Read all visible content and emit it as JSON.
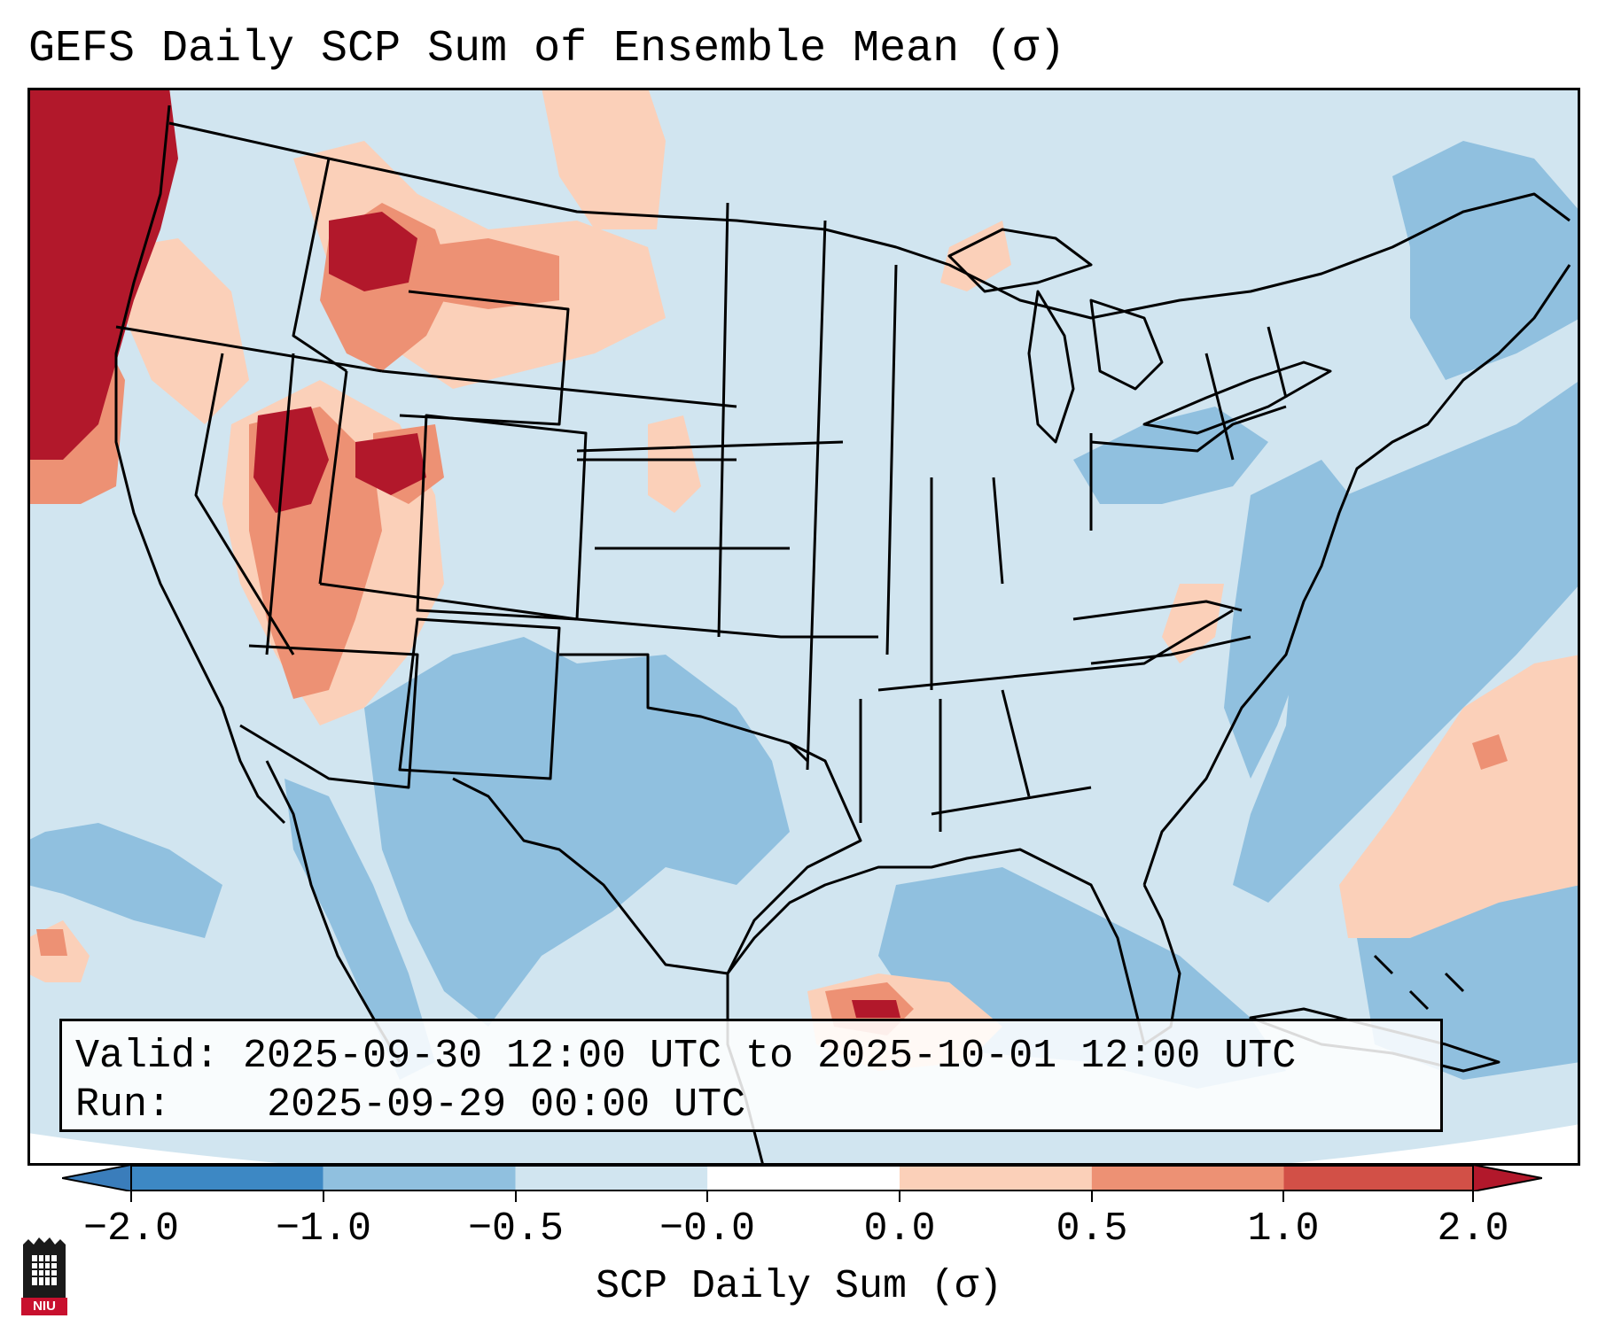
{
  "title": "GEFS Daily SCP Sum of Ensemble Mean (σ)",
  "info": {
    "valid_label": "Valid:",
    "valid_value": "2025-09-30 12:00 UTC to 2025-10-01 12:00 UTC",
    "run_label": "Run:",
    "run_value": "2025-09-29 00:00 UTC"
  },
  "colorbar": {
    "label": "SCP Daily Sum (σ)",
    "ticks": [
      "−2.0",
      "−1.0",
      "−0.5",
      "−0.0",
      "0.0",
      "0.5",
      "1.0",
      "2.0"
    ],
    "colors": [
      "#3d88c4",
      "#90c0df",
      "#d1e5f0",
      "#ffffff",
      "#fbd0b9",
      "#ed9174",
      "#d25047",
      "#b2182b"
    ],
    "under_color": "#3a7dbb",
    "over_color": "#b2182b",
    "background_color": "#d1e5f0",
    "outline_color": "#000000"
  },
  "logo": {
    "text": "NIU"
  },
  "regions": {
    "main_basemap_category": "-0.5 to 0.0",
    "positive_anomaly_areas": [
      "Pacific Northwest coast",
      "Idaho / Montana",
      "Great Basin",
      "Western Gulf of Mexico",
      "Western Atlantic"
    ],
    "negative_anomaly_areas": [
      "Southwest",
      "Texas",
      "Gulf of Mexico",
      "Mid-Atlantic",
      "Atlantic Ocean"
    ]
  }
}
